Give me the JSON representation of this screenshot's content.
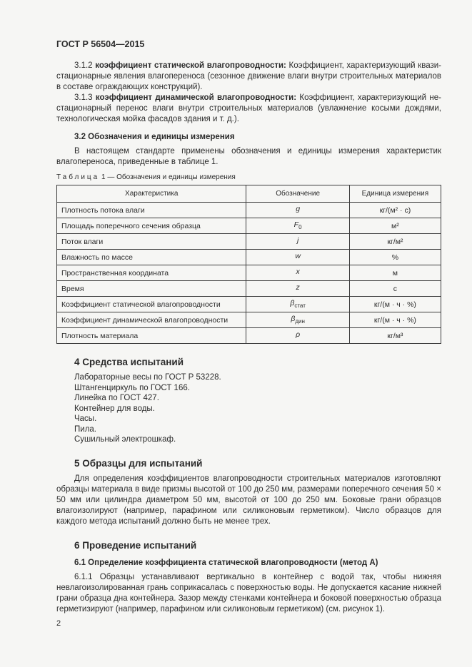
{
  "doc": {
    "header": "ГОСТ Р 56504—2015",
    "page_number": "2"
  },
  "terms": {
    "p312_num": "3.1.2 ",
    "p312_term": "коэффициент статической влагопроводности:",
    "p312_body": " Коэффициент, характеризующий квази­стационарные явления влагопереноса (сезонное движение влаги внутри строительных материалов в составе ограждающих конструкций).",
    "p313_num": "3.1.3 ",
    "p313_term": "коэффициент динамической влагопроводности:",
    "p313_body": " Коэффициент, характеризующий не­стационарный перенос влаги внутри строительных материалов (увлажнение косыми дождями, техно­логическая мойка фасадов здания и т. д.)."
  },
  "section32": {
    "heading": "3.2  Обозначения и единицы измерения",
    "intro": "В настоящем стандарте применены обозначения и единицы измерения характеристик влагопере­носа, приведенные в таблице 1."
  },
  "table1": {
    "caption_word": "Таблица",
    "caption_rest": " 1 — Обозначения и единицы измерения",
    "headers": [
      "Характеристика",
      "Обозначение",
      "Единица измерения"
    ],
    "rows": [
      {
        "name": "Плотность потока влаги",
        "sym": "g",
        "sub": "",
        "unit": "кг/(м² · с)"
      },
      {
        "name": "Площадь поперечного сечения образца",
        "sym": "F",
        "sub": "0",
        "unit": "м²"
      },
      {
        "name": "Поток влаги",
        "sym": "j",
        "sub": "",
        "unit": "кг/м²"
      },
      {
        "name": "Влажность по массе",
        "sym": "w",
        "sub": "",
        "unit": "%"
      },
      {
        "name": "Пространственная координата",
        "sym": "x",
        "sub": "",
        "unit": "м"
      },
      {
        "name": "Время",
        "sym": "z",
        "sub": "",
        "unit": "с"
      },
      {
        "name": "Коэффициент статической влагопроводности",
        "sym": "β",
        "sub": "стат",
        "unit": "кг/(м · ч · %)"
      },
      {
        "name": "Коэффициент динамической влагопроводности",
        "sym": "β",
        "sub": "дин",
        "unit": "кг/(м · ч · %)"
      },
      {
        "name": "Плотность материала",
        "sym": "ρ",
        "sub": "",
        "unit": "кг/м³"
      }
    ]
  },
  "section4": {
    "heading": "4  Средства испытаний",
    "items": [
      "Лабораторные весы по ГОСТ Р 53228.",
      "Штангенциркуль по ГОСТ 166.",
      "Линейка по ГОСТ 427.",
      "Контейнер для воды.",
      "Часы.",
      "Пила.",
      "Сушильный электрошкаф."
    ]
  },
  "section5": {
    "heading": "5  Образцы для испытаний",
    "body": "Для определения коэффициентов влагопроводности строительных материалов изготовляют об­разцы материала в виде призмы высотой от 100 до 250 мм, размерами поперечного сечения 50 × 50 мм или цилиндра диаметром 50 мм, высотой от 100 до 250 мм. Боковые грани образцов влагоизолируют (например, парафином или силиконовым герметиком). Число образцов для каждого метода испытаний должно быть не менее трех."
  },
  "section6": {
    "heading": "6  Проведение испытаний",
    "sub_heading": "6.1  Определение коэффициента статической влагопроводности (метод А)",
    "p611_num": "6.1.1  ",
    "p611_body": "Образцы устанавливают вертикально в контейнер с водой так, чтобы нижняя невлагоизоли­рованная грань соприкасалась с поверхностью воды. Не допускается касание нижней грани образца дна контейнера. Зазор между стенками контейнера и боковой поверхностью образца герметизируют (например, парафином или силиконовым герметиком) (см. рисунок 1)."
  }
}
